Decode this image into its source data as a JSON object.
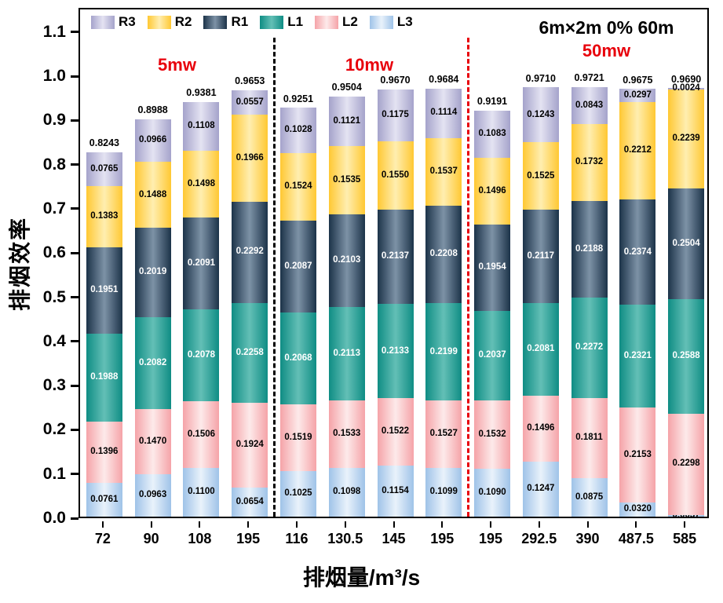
{
  "annotations": {
    "config": "6m×2m 0% 60m",
    "power_group_1": "5mw",
    "power_group_2": "10mw",
    "power_group_3": "50mw",
    "accent_red": "#e8000b"
  },
  "chart_data": {
    "type": "bar",
    "stacked": true,
    "xlabel": "排烟量/m³/s",
    "ylabel": "排烟效率",
    "ylim": [
      0,
      1.155
    ],
    "grid": false,
    "legend_position": "top-left-inside",
    "y_tick_labels": [
      "0.0",
      "0.1",
      "0.2",
      "0.3",
      "0.4",
      "0.5",
      "0.6",
      "0.7",
      "0.8",
      "0.9",
      "1.0",
      "1.1"
    ],
    "categories": [
      "72",
      "90",
      "108",
      "195",
      "116",
      "130.5",
      "145",
      "195",
      "195",
      "292.5",
      "390",
      "487.5",
      "585"
    ],
    "totals": [
      0.8243,
      0.8988,
      0.9381,
      0.9653,
      0.9251,
      0.9504,
      0.967,
      0.9684,
      0.9191,
      0.971,
      0.9721,
      0.9675,
      0.969
    ],
    "series": [
      {
        "name": "L3",
        "color_edge": "#9fc3e8",
        "color_mid": "#e9f2fb",
        "label_color": "#000000",
        "values": [
          0.0761,
          0.0963,
          0.11,
          0.0654,
          0.1025,
          0.1098,
          0.1154,
          0.1099,
          0.109,
          0.1247,
          0.0875,
          0.032,
          0.0037
        ]
      },
      {
        "name": "L2",
        "color_edge": "#f5a3a8",
        "color_mid": "#fdeaea",
        "label_color": "#000000",
        "values": [
          0.1396,
          0.147,
          0.1506,
          0.1924,
          0.1519,
          0.1533,
          0.1522,
          0.1527,
          0.1532,
          0.1496,
          0.1811,
          0.2153,
          0.2298
        ]
      },
      {
        "name": "L1",
        "color_edge": "#0f8d84",
        "color_mid": "#63bfb6",
        "label_color": "#ffffff",
        "values": [
          0.1988,
          0.2082,
          0.2078,
          0.2258,
          0.2068,
          0.2113,
          0.2133,
          0.2199,
          0.2037,
          0.2081,
          0.2272,
          0.2321,
          0.2588
        ]
      },
      {
        "name": "R1",
        "color_edge": "#1c3349",
        "color_mid": "#7d92a6",
        "label_color": "#ffffff",
        "values": [
          0.1951,
          0.2019,
          0.2091,
          0.2292,
          0.2087,
          0.2103,
          0.2137,
          0.2208,
          0.1954,
          0.2117,
          0.2188,
          0.2374,
          0.2504
        ]
      },
      {
        "name": "R2",
        "color_edge": "#ffc833",
        "color_mid": "#ffeeb0",
        "label_color": "#000000",
        "values": [
          0.1383,
          0.1488,
          0.1498,
          0.1966,
          0.1524,
          0.1535,
          0.155,
          0.1537,
          0.1496,
          0.1525,
          0.1732,
          0.2212,
          0.2239
        ]
      },
      {
        "name": "R3",
        "color_edge": "#a5a3cb",
        "color_mid": "#e4e3f2",
        "label_color": "#000000",
        "values": [
          0.0765,
          0.0966,
          0.1108,
          0.0557,
          0.1028,
          0.1121,
          0.1175,
          0.1114,
          0.1083,
          0.1243,
          0.0843,
          0.0297,
          0.0024
        ]
      }
    ],
    "legend_order": [
      "R3",
      "R2",
      "R1",
      "L1",
      "L2",
      "L3"
    ],
    "separators": [
      {
        "after_index": 3,
        "color": "#000000",
        "style": "dashed"
      },
      {
        "after_index": 7,
        "color": "#e8000b",
        "style": "dashed"
      }
    ]
  }
}
